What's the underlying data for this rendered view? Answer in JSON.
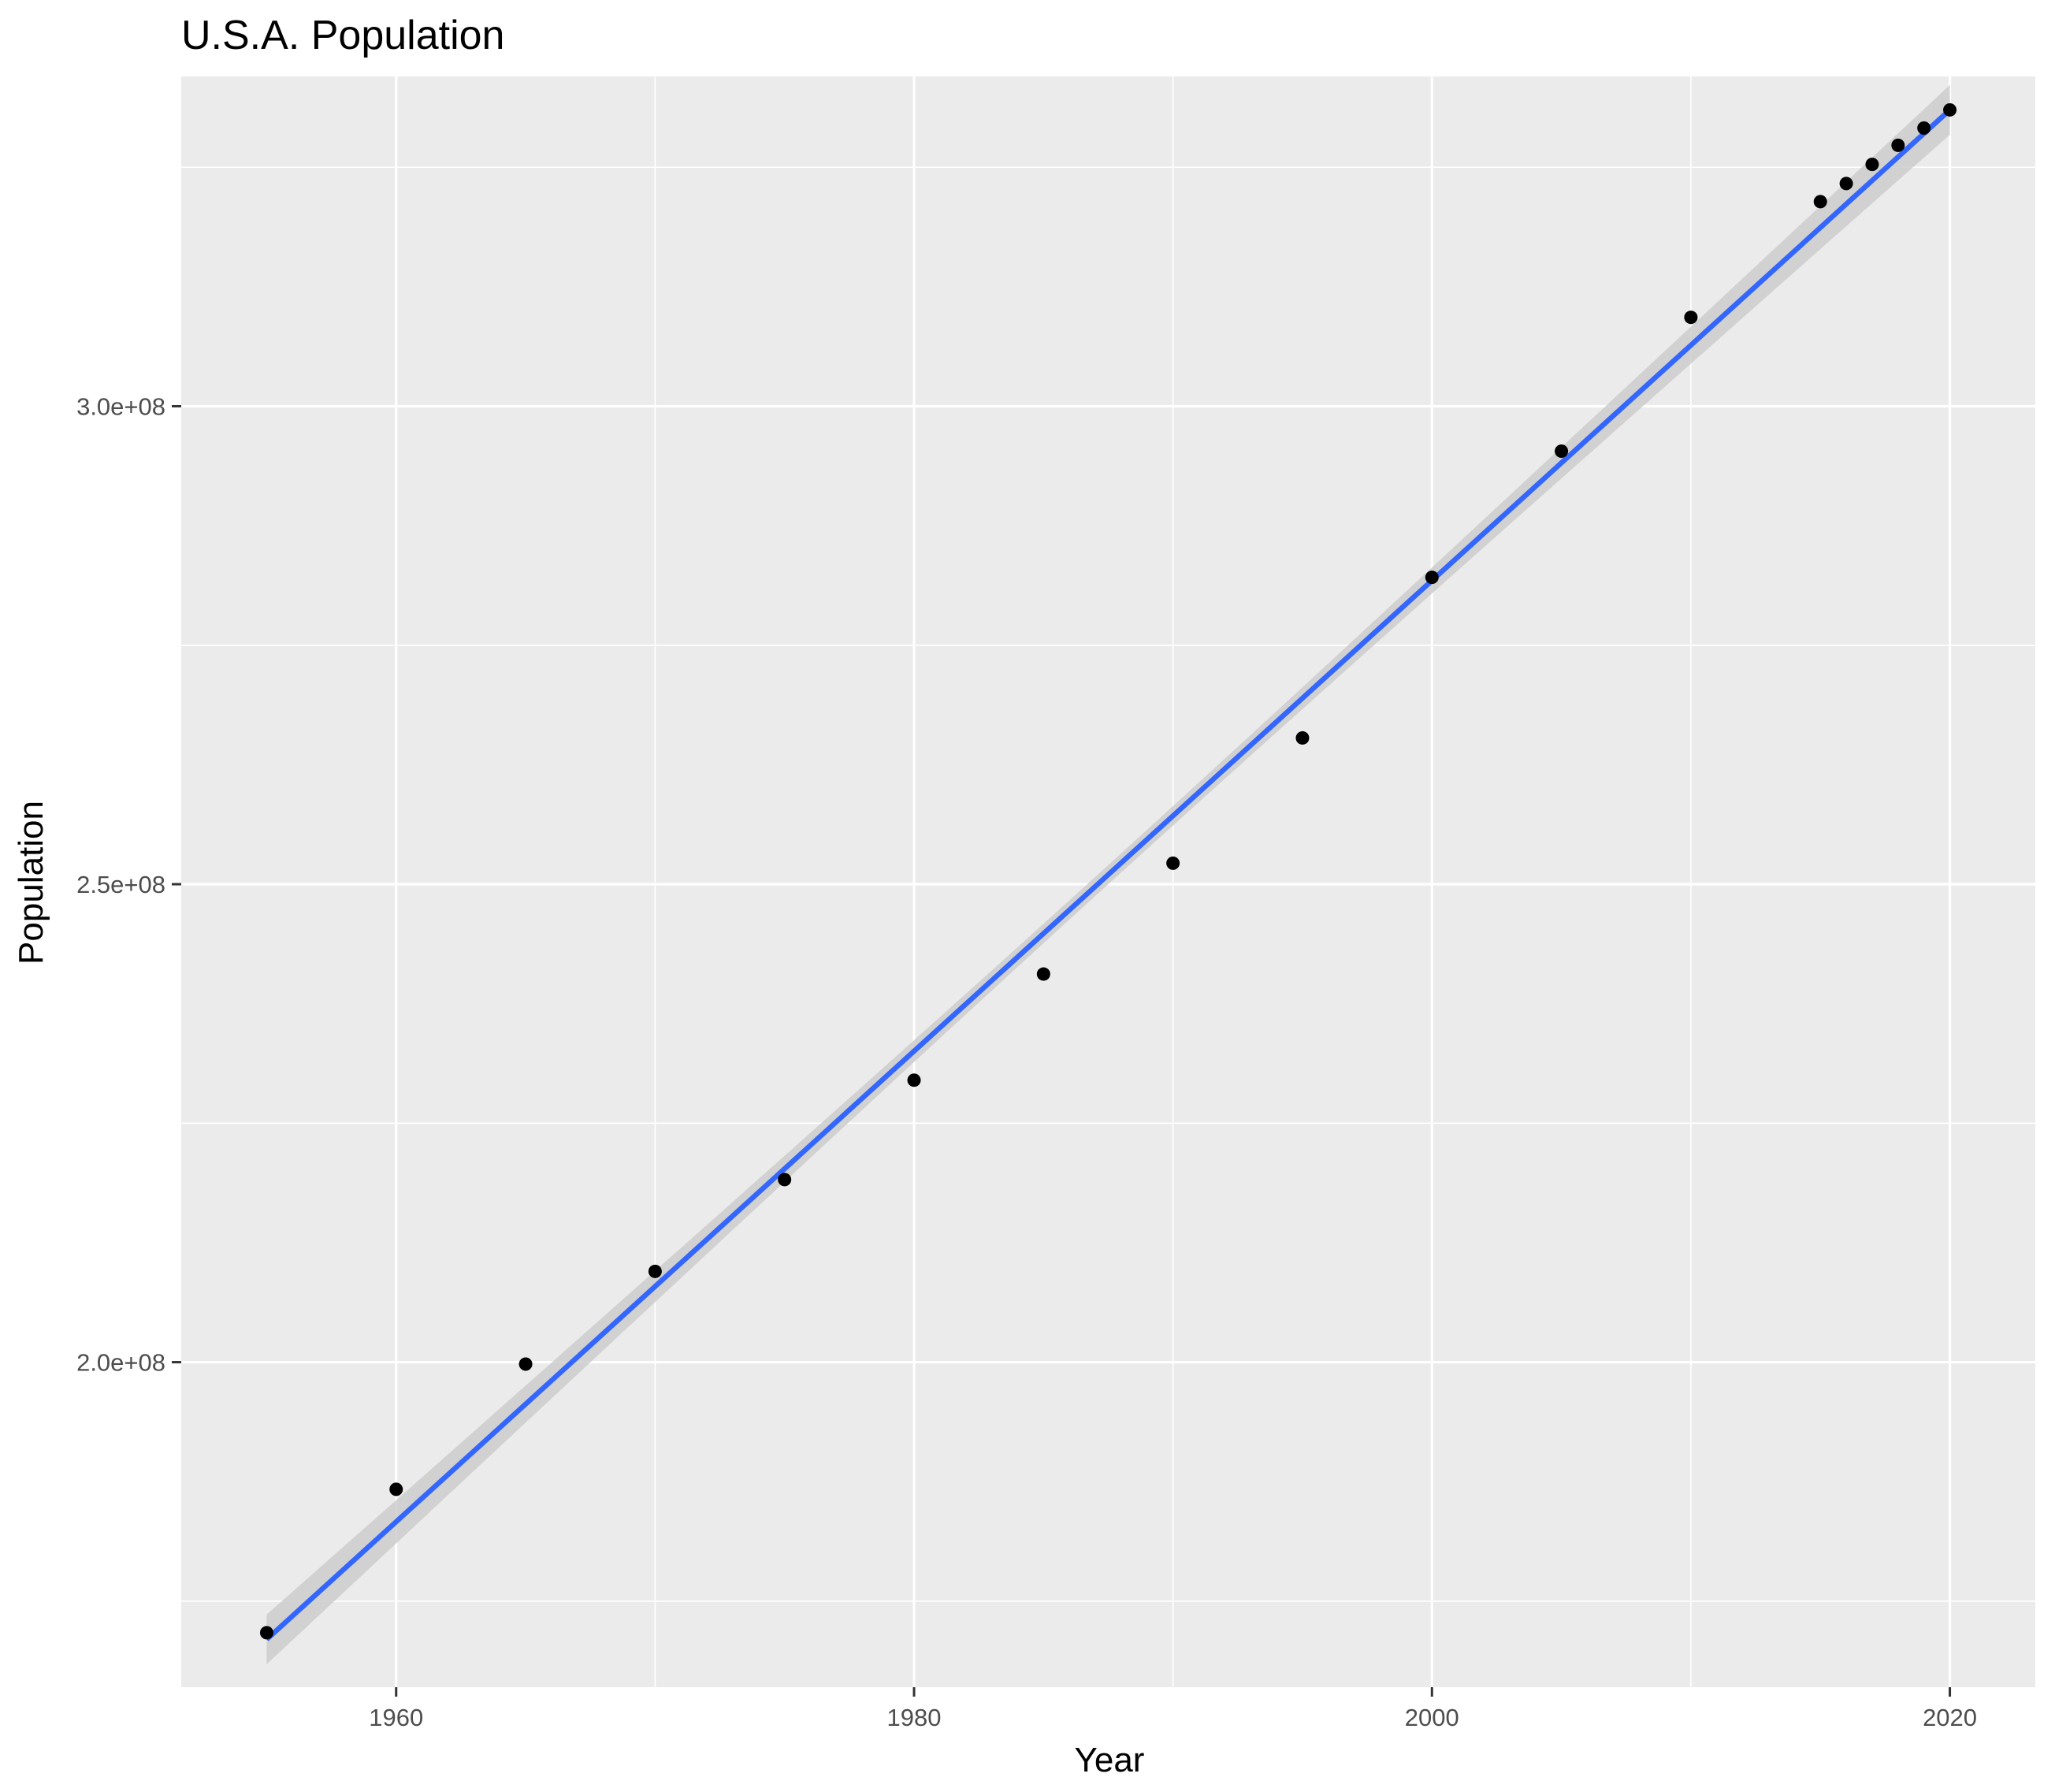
{
  "chart_data": {
    "type": "scatter",
    "title": "U.S.A. Population",
    "xlabel": "Year",
    "ylabel": "Population",
    "xlim": [
      1951.7,
      2023.3
    ],
    "ylim": [
      166000000,
      334500000
    ],
    "x_ticks": [
      1960,
      1980,
      2000,
      2020
    ],
    "x_tick_labels": [
      "1960",
      "1980",
      "2000",
      "2020"
    ],
    "y_ticks": [
      200000000,
      250000000,
      300000000
    ],
    "y_tick_labels": [
      "2.0e+08",
      "2.5e+08",
      "3.0e+08"
    ],
    "x_minor_ticks": [
      1950,
      1970,
      1990,
      2010
    ],
    "y_minor_ticks": [
      175000000,
      225000000,
      275000000,
      325000000
    ],
    "grid": true,
    "background": "#ebebeb",
    "point_color": "#000000",
    "trend_line": {
      "method": "linear",
      "color": "#3366ff",
      "confidence_band_color": "#cccccc",
      "start": {
        "x": 1955,
        "y": 171000000
      },
      "end": {
        "x": 2020,
        "y": 331000000
      },
      "band_half_width_ends": 2600000,
      "band_half_width_center": 1000000
    },
    "series": [
      {
        "x": [
          1955,
          1960,
          1965,
          1970,
          1975,
          1980,
          1985,
          1990,
          1995,
          2000,
          2005,
          2010,
          2015,
          2016,
          2017,
          2018,
          2019,
          2020
        ],
        "y": [
          171700000,
          186700000,
          199800000,
          209500000,
          219100000,
          229500000,
          240600000,
          252200000,
          265300000,
          282100000,
          295300000,
          309300000,
          321400000,
          323300000,
          325300000,
          327300000,
          329100000,
          331000000
        ]
      }
    ]
  }
}
